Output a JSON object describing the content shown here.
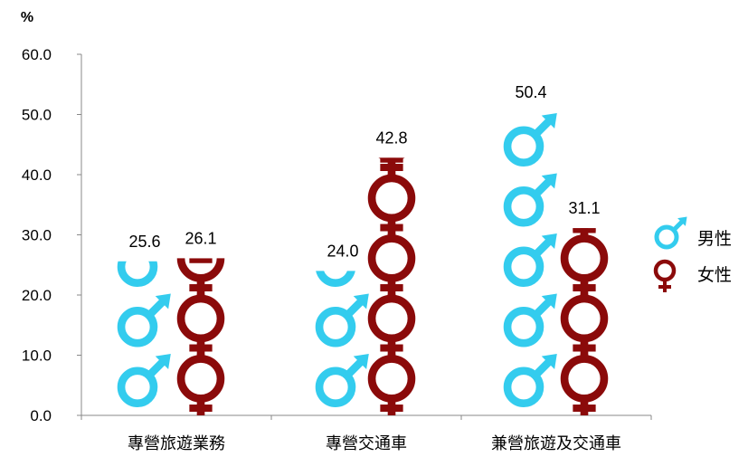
{
  "chart_data": {
    "type": "bar",
    "ylabel": "%",
    "ylim": [
      0,
      60
    ],
    "yticks": [
      "0.0",
      "10.0",
      "20.0",
      "30.0",
      "40.0",
      "50.0",
      "60.0"
    ],
    "categories": [
      "專營旅遊業務",
      "專營交通車",
      "兼營旅遊及交通車"
    ],
    "series": [
      {
        "name": "男性",
        "values": [
          25.6,
          24.0,
          50.4
        ],
        "value_labels": [
          "25.6",
          "24.0",
          "50.4"
        ],
        "icon": "male-symbol-icon"
      },
      {
        "name": "女性",
        "values": [
          26.1,
          42.8,
          31.1
        ],
        "value_labels": [
          "26.1",
          "42.8",
          "31.1"
        ],
        "icon": "female-symbol-icon"
      }
    ],
    "grid": false,
    "legend": "right",
    "colors": {
      "male": "#33CCEE",
      "female": "#8B0A0A",
      "axis": "#888888"
    }
  }
}
